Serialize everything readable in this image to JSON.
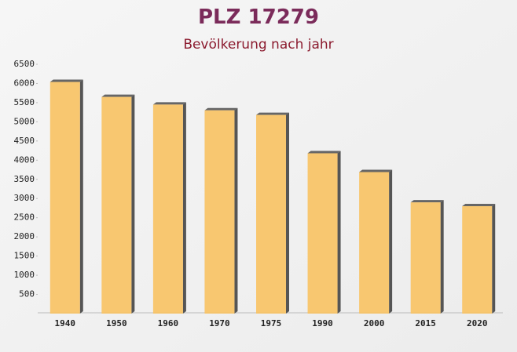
{
  "chart_data": {
    "type": "bar",
    "title": "PLZ 17279",
    "subtitle": "Bevölkerung nach jahr",
    "categories": [
      "1940",
      "1950",
      "1960",
      "1970",
      "1975",
      "1990",
      "2000",
      "2015",
      "2020"
    ],
    "values": [
      6040,
      5650,
      5450,
      5300,
      5180,
      4180,
      3690,
      2900,
      2800
    ],
    "color": "#f8c262",
    "ylim": [
      0,
      6500
    ],
    "yticks": [
      500,
      1000,
      1500,
      2000,
      2500,
      3000,
      3500,
      4000,
      4500,
      5000,
      5500,
      6000,
      6500
    ]
  }
}
